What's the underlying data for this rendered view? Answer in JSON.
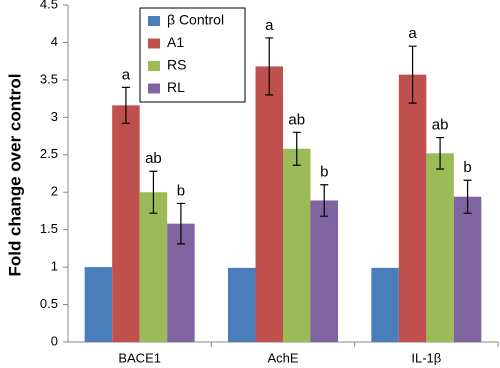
{
  "chart_data": {
    "type": "bar",
    "y_label": "Fold change over control",
    "categories": [
      "BACE1",
      "AchE",
      "IL-1β"
    ],
    "series": [
      {
        "name": "β Control",
        "color": "#4a7ebb",
        "values": [
          1.0,
          0.99,
          0.99
        ],
        "errors": [
          null,
          null,
          null
        ]
      },
      {
        "name": "A1",
        "color": "#c0504d",
        "values": [
          3.16,
          3.68,
          3.57
        ],
        "errors": [
          0.24,
          0.38,
          0.38
        ],
        "labels": [
          "a",
          "a",
          "a"
        ]
      },
      {
        "name": "RS",
        "color": "#9bbb59",
        "values": [
          2.0,
          2.58,
          2.52
        ],
        "errors": [
          0.28,
          0.22,
          0.21
        ],
        "labels": [
          "ab",
          "ab",
          "ab"
        ]
      },
      {
        "name": "RL",
        "color": "#8064a2",
        "values": [
          1.58,
          1.89,
          1.94
        ],
        "errors": [
          0.27,
          0.21,
          0.22
        ],
        "labels": [
          "b",
          "b",
          "b"
        ]
      }
    ],
    "ylim": [
      0,
      4.5
    ],
    "yticks": [
      0,
      0.5,
      1,
      1.5,
      2,
      2.5,
      3,
      3.5,
      4,
      4.5
    ],
    "grid": false,
    "legend": "top-left"
  }
}
